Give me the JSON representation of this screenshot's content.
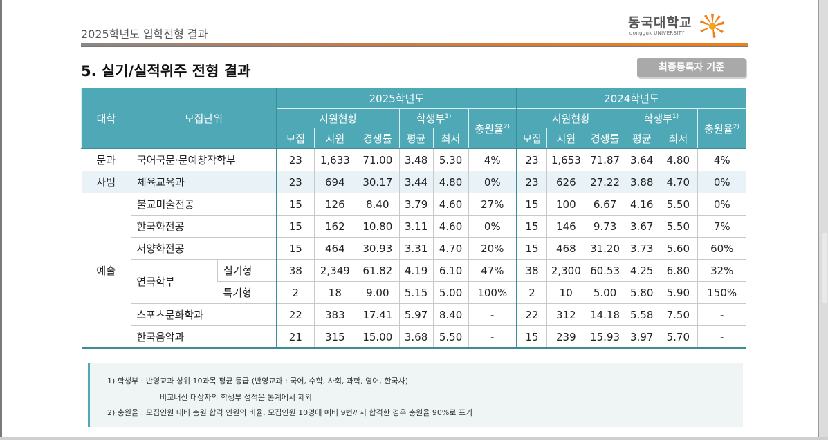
{
  "doc_title": "2025학년도 입학전형 결과",
  "logo": {
    "name_ko": "동국대학교",
    "name_en": "dongguk UNIVERSITY",
    "accent_color": "#ef7f1a"
  },
  "section_title": "5. 실기/실적위주 전형 결과",
  "basis_badge": "최종등록자 기준",
  "table": {
    "header": {
      "college": "대학",
      "unit": "모집단위",
      "year_2025": "2025학년도",
      "year_2024": "2024학년도",
      "apply_status": "지원현황",
      "record": "학생부",
      "record_sup": "1)",
      "fill_rate": "충원율",
      "fill_rate_sup": "2)",
      "recruit": "모집",
      "applicants": "지원",
      "competition": "경쟁률",
      "average": "평균",
      "lowest": "최저"
    },
    "colleges": {
      "humanities": "문과",
      "education": "사범",
      "arts": "예술"
    },
    "theater_unit": "연극학부",
    "rows": [
      {
        "unit": "국어국문·문예창작학부",
        "y2025": [
          "23",
          "1,633",
          "71.00",
          "3.48",
          "5.30",
          "4%"
        ],
        "y2024": [
          "23",
          "1,653",
          "71.87",
          "3.64",
          "4.80",
          "4%"
        ]
      },
      {
        "unit": "체육교육과",
        "y2025": [
          "23",
          "694",
          "30.17",
          "3.44",
          "4.80",
          "0%"
        ],
        "y2024": [
          "23",
          "626",
          "27.22",
          "3.88",
          "4.70",
          "0%"
        ]
      },
      {
        "unit": "불교미술전공",
        "y2025": [
          "15",
          "126",
          "8.40",
          "3.79",
          "4.60",
          "27%"
        ],
        "y2024": [
          "15",
          "100",
          "6.67",
          "4.16",
          "5.50",
          "0%"
        ]
      },
      {
        "unit": "한국화전공",
        "y2025": [
          "15",
          "162",
          "10.80",
          "3.11",
          "4.60",
          "0%"
        ],
        "y2024": [
          "15",
          "146",
          "9.73",
          "3.67",
          "5.50",
          "7%"
        ]
      },
      {
        "unit": "서양화전공",
        "y2025": [
          "15",
          "464",
          "30.93",
          "3.31",
          "4.70",
          "20%"
        ],
        "y2024": [
          "15",
          "468",
          "31.20",
          "3.73",
          "5.60",
          "60%"
        ]
      },
      {
        "unit": "실기형",
        "y2025": [
          "38",
          "2,349",
          "61.82",
          "4.19",
          "6.10",
          "47%"
        ],
        "y2024": [
          "38",
          "2,300",
          "60.53",
          "4.25",
          "6.80",
          "32%"
        ]
      },
      {
        "unit": "특기형",
        "y2025": [
          "2",
          "18",
          "9.00",
          "5.15",
          "5.00",
          "100%"
        ],
        "y2024": [
          "2",
          "10",
          "5.00",
          "5.80",
          "5.90",
          "150%"
        ]
      },
      {
        "unit": "스포츠문화학과",
        "y2025": [
          "22",
          "383",
          "17.41",
          "5.97",
          "8.40",
          "-"
        ],
        "y2024": [
          "22",
          "312",
          "14.18",
          "5.58",
          "7.50",
          "-"
        ]
      },
      {
        "unit": "한국음악과",
        "y2025": [
          "21",
          "315",
          "15.00",
          "3.68",
          "5.50",
          "-"
        ],
        "y2024": [
          "15",
          "239",
          "15.93",
          "3.97",
          "5.70",
          "-"
        ]
      }
    ]
  },
  "notes": {
    "note1": "1) 학생부 : 반영교과 상위 10과목 평균 등급 (반영교과 : 국어, 수학, 사회, 과학, 영어, 한국사)",
    "note1_cont": "비교내신 대상자의 학생부 성적은 통계에서 제외",
    "note2": "2) 충원율 : 모집인원 대비 충원 합격 인원의 비율. 모집인원 10명에 예비 9번까지 합격한 경우 충원율 90%로 표기"
  }
}
